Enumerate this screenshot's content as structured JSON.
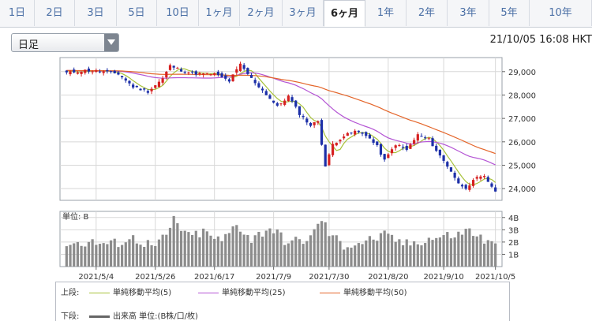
{
  "tabs": [
    {
      "label": "1日",
      "active": false
    },
    {
      "label": "2日",
      "active": false
    },
    {
      "label": "3日",
      "active": false
    },
    {
      "label": "5日",
      "active": false
    },
    {
      "label": "10日",
      "active": false
    },
    {
      "label": "1ヶ月",
      "active": false
    },
    {
      "label": "2ヶ月",
      "active": false
    },
    {
      "label": "3ヶ月",
      "active": false
    },
    {
      "label": "6ヶ月",
      "active": true
    },
    {
      "label": "1年",
      "active": false
    },
    {
      "label": "2年",
      "active": false
    },
    {
      "label": "3年",
      "active": false
    },
    {
      "label": "5年",
      "active": false
    },
    {
      "label": "10年",
      "active": false
    }
  ],
  "period_select": {
    "value": "日足"
  },
  "timestamp": "21/10/05 16:08 HKT",
  "legend": {
    "upper_label": "上段:",
    "lower_label": "下段:",
    "ma5": "単純移動平均(5)",
    "ma25": "単純移動平均(25)",
    "ma50": "単純移動平均(50)",
    "volume": "出来高 単位:(B株/口/枚)"
  },
  "colors": {
    "up_candle": "#d62020",
    "down_candle": "#1c2fa8",
    "ma5": "#a8c23a",
    "ma25": "#b455d4",
    "ma50": "#e4652a",
    "volume_bar": "#8c8c8c"
  },
  "chart_data": [
    {
      "type": "candlestick",
      "title": "",
      "x_tick_labels": [
        "2021/5/4",
        "2021/5/26",
        "2021/6/17",
        "2021/7/9",
        "2021/7/30",
        "2021/8/20",
        "2021/9/10",
        "2021/10/5"
      ],
      "y_ticks": [
        "29,000",
        "28,000",
        "27,000",
        "26,000",
        "25,000",
        "24,000"
      ],
      "ylim": [
        23500,
        29600
      ],
      "grid": true,
      "close_anchors": [
        [
          0,
          28950
        ],
        [
          5,
          29050
        ],
        [
          10,
          29000
        ],
        [
          14,
          28900
        ],
        [
          18,
          28350
        ],
        [
          22,
          28150
        ],
        [
          26,
          28700
        ],
        [
          28,
          29250
        ],
        [
          32,
          29000
        ],
        [
          36,
          28900
        ],
        [
          40,
          28900
        ],
        [
          44,
          28600
        ],
        [
          47,
          29300
        ],
        [
          50,
          28700
        ],
        [
          53,
          28200
        ],
        [
          57,
          27500
        ],
        [
          60,
          27950
        ],
        [
          63,
          27200
        ],
        [
          66,
          26700
        ],
        [
          68,
          26900
        ],
        [
          70,
          24950
        ],
        [
          72,
          25900
        ],
        [
          75,
          26250
        ],
        [
          78,
          26450
        ],
        [
          81,
          26300
        ],
        [
          84,
          25800
        ],
        [
          86,
          25200
        ],
        [
          89,
          25900
        ],
        [
          92,
          25650
        ],
        [
          95,
          26300
        ],
        [
          98,
          26100
        ],
        [
          101,
          25400
        ],
        [
          104,
          24750
        ],
        [
          106,
          24200
        ],
        [
          108,
          24050
        ],
        [
          111,
          24450
        ],
        [
          113,
          24500
        ],
        [
          116,
          23900
        ]
      ],
      "moving_averages": [
        {
          "name": "単純移動平均(5)",
          "period": 5
        },
        {
          "name": "単純移動平均(25)",
          "period": 25
        },
        {
          "name": "単純移動平均(50)",
          "period": 50
        }
      ]
    },
    {
      "type": "bar",
      "title": "",
      "unit_label": "単位: B",
      "y_ticks": [
        "4B",
        "3B",
        "2B",
        "1B"
      ],
      "ylim": [
        0,
        4.5
      ],
      "volume_anchors": [
        [
          0,
          1.8
        ],
        [
          6,
          2.0
        ],
        [
          12,
          1.8
        ],
        [
          18,
          2.3
        ],
        [
          24,
          1.6
        ],
        [
          27,
          2.5
        ],
        [
          29,
          3.8
        ],
        [
          33,
          2.4
        ],
        [
          37,
          2.8
        ],
        [
          42,
          2.0
        ],
        [
          46,
          3.5
        ],
        [
          50,
          2.2
        ],
        [
          55,
          3.2
        ],
        [
          60,
          1.9
        ],
        [
          66,
          2.3
        ],
        [
          69,
          3.9
        ],
        [
          71,
          2.7
        ],
        [
          75,
          1.7
        ],
        [
          80,
          2.0
        ],
        [
          86,
          2.5
        ],
        [
          92,
          1.8
        ],
        [
          97,
          2.2
        ],
        [
          103,
          2.5
        ],
        [
          106,
          2.6
        ],
        [
          109,
          3.0
        ],
        [
          112,
          2.3
        ],
        [
          116,
          1.6
        ]
      ]
    }
  ]
}
